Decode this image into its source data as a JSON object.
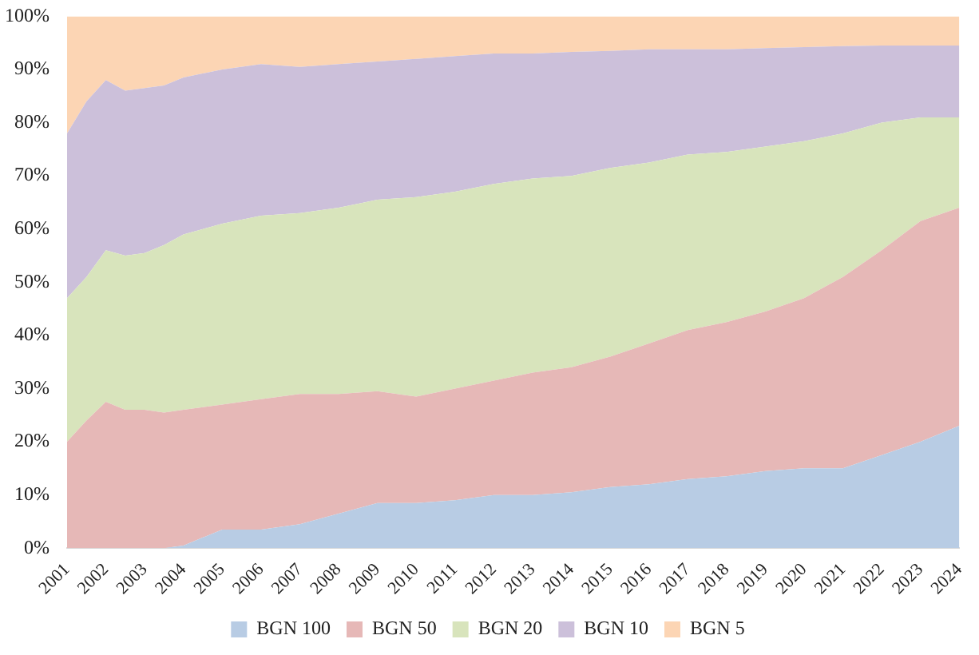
{
  "chart_data": {
    "type": "area",
    "stacked": true,
    "grid": false,
    "legend": "bottom",
    "x": [
      2001,
      2001.5,
      2002,
      2002.5,
      2003,
      2003.5,
      2004,
      2005,
      2006,
      2007,
      2008,
      2009,
      2010,
      2011,
      2012,
      2013,
      2014,
      2015,
      2016,
      2017,
      2018,
      2019,
      2020,
      2021,
      2022,
      2023,
      2024
    ],
    "xlim": [
      2001,
      2024
    ],
    "xticks": [
      2001,
      2002,
      2003,
      2004,
      2005,
      2006,
      2007,
      2008,
      2009,
      2010,
      2011,
      2012,
      2013,
      2014,
      2015,
      2016,
      2017,
      2018,
      2019,
      2020,
      2021,
      2022,
      2023,
      2024
    ],
    "ylim": [
      0,
      100
    ],
    "yticks": [
      {
        "value": 0,
        "label": "0%"
      },
      {
        "value": 10,
        "label": "10%"
      },
      {
        "value": 20,
        "label": "20%"
      },
      {
        "value": 30,
        "label": "30%"
      },
      {
        "value": 40,
        "label": "40%"
      },
      {
        "value": 50,
        "label": "50%"
      },
      {
        "value": 60,
        "label": "60%"
      },
      {
        "value": 70,
        "label": "70%"
      },
      {
        "value": 80,
        "label": "80%"
      },
      {
        "value": 90,
        "label": "90%"
      },
      {
        "value": 100,
        "label": "100%"
      }
    ],
    "series": [
      {
        "name": "BGN 100",
        "color": "#b8cce4",
        "values": [
          0,
          0,
          0,
          0,
          0,
          0,
          0.5,
          3.5,
          3.5,
          4.5,
          6.5,
          8.5,
          8.5,
          9,
          10,
          10,
          10.5,
          11.5,
          12,
          13,
          13.5,
          14.5,
          15,
          15,
          17.5,
          20,
          23
        ]
      },
      {
        "name": "BGN 50",
        "color": "#e6b8b7",
        "values": [
          20,
          24,
          27.5,
          26,
          26,
          25.5,
          25.5,
          23.5,
          24.5,
          24.5,
          22.5,
          21,
          20,
          21,
          21.5,
          23,
          23.5,
          24.5,
          26.5,
          28,
          29,
          30,
          32,
          36,
          38.5,
          41.5,
          41
        ]
      },
      {
        "name": "BGN 20",
        "color": "#d8e4bc",
        "values": [
          27,
          27,
          28.5,
          29,
          29.5,
          31.5,
          33,
          34,
          34.5,
          34,
          35,
          36,
          37.5,
          37,
          37,
          36.5,
          36,
          35.5,
          34,
          33,
          32,
          31,
          29.5,
          27,
          24,
          19.5,
          17
        ]
      },
      {
        "name": "BGN 10",
        "color": "#ccc0da",
        "values": [
          31,
          33,
          32,
          31,
          31,
          30,
          29.5,
          29,
          28.5,
          27.5,
          27,
          26,
          26,
          25.5,
          24.5,
          23.5,
          23.3,
          22,
          21.3,
          19.8,
          19.3,
          18.5,
          17.7,
          16.4,
          14.5,
          13.5,
          13.5
        ]
      },
      {
        "name": "BGN 5",
        "color": "#fcd5b4",
        "values": [
          22,
          16,
          12,
          14,
          13.5,
          13,
          11.5,
          10,
          9,
          9.5,
          9,
          8.5,
          8,
          7.5,
          7,
          7,
          6.7,
          6.5,
          6.2,
          6.2,
          6.2,
          6,
          5.8,
          5.6,
          5.5,
          5.5,
          5.5
        ]
      }
    ]
  }
}
